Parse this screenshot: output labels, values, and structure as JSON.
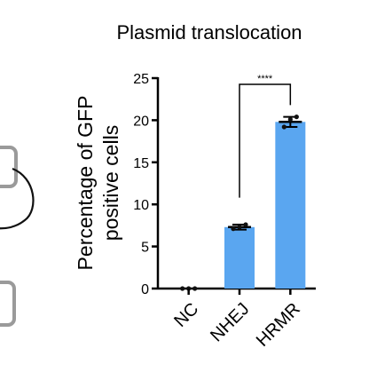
{
  "chart_data": {
    "type": "bar",
    "title": "Plasmid translocation",
    "ylabel_line1": "Percentage of GFP",
    "ylabel_line2": "positive cells",
    "xlabel": "",
    "categories": [
      "NC",
      "NHEJ",
      "HRMR"
    ],
    "values": [
      0.0,
      7.3,
      19.8
    ],
    "errors": [
      0.1,
      0.3,
      0.6
    ],
    "points": [
      [
        0.0,
        0.0,
        0.0
      ],
      [
        7.1,
        7.3,
        7.6
      ],
      [
        19.2,
        20.1,
        20.4
      ]
    ],
    "ylim": [
      0,
      25
    ],
    "yticks": [
      0,
      5,
      10,
      15,
      20,
      25
    ],
    "grid": false,
    "legend": "none",
    "significance": [
      {
        "from": "NHEJ",
        "to": "HRMR",
        "label": "****"
      }
    ],
    "bar_color": "#5aa6f0",
    "point_color": "#111111"
  }
}
